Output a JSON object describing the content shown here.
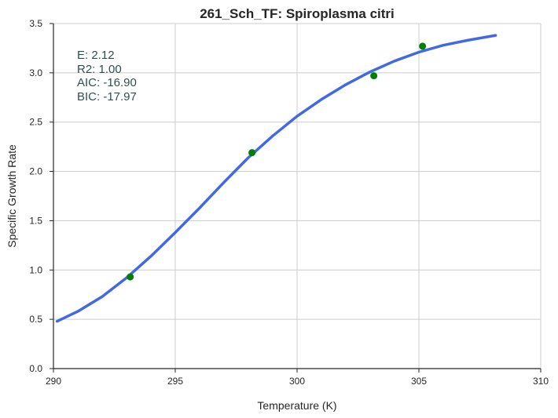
{
  "chart_data": {
    "type": "scatter",
    "title": "261_Sch_TF: Spiroplasma citri",
    "xlabel": "Temperature (K)",
    "ylabel": "Specific Growth Rate",
    "xlim": [
      290,
      310
    ],
    "ylim": [
      0.0,
      3.5
    ],
    "x_ticks": [
      "290",
      "295",
      "300",
      "305",
      "310"
    ],
    "y_ticks": [
      "0.0",
      "0.5",
      "1.0",
      "1.5",
      "2.0",
      "2.5",
      "3.0",
      "3.5"
    ],
    "grid": true,
    "series": [
      {
        "kind": "points",
        "color": "#008000",
        "x": [
          293.15,
          298.15,
          303.15,
          305.15
        ],
        "y": [
          0.93,
          2.19,
          2.97,
          3.27
        ]
      },
      {
        "kind": "line",
        "color": "#4169e1",
        "x": [
          290.15,
          291.0,
          292.0,
          293.0,
          294.0,
          295.0,
          296.0,
          297.0,
          298.0,
          299.0,
          300.0,
          301.0,
          302.0,
          303.0,
          304.0,
          305.0,
          306.0,
          307.0,
          308.15
        ],
        "y": [
          0.48,
          0.58,
          0.73,
          0.92,
          1.14,
          1.38,
          1.63,
          1.89,
          2.14,
          2.36,
          2.56,
          2.73,
          2.88,
          3.01,
          3.12,
          3.21,
          3.28,
          3.33,
          3.38
        ]
      }
    ],
    "annotation": [
      "E:  2.12",
      "R2:  1.00",
      "AIC: -16.90",
      "BIC: -17.97"
    ]
  }
}
